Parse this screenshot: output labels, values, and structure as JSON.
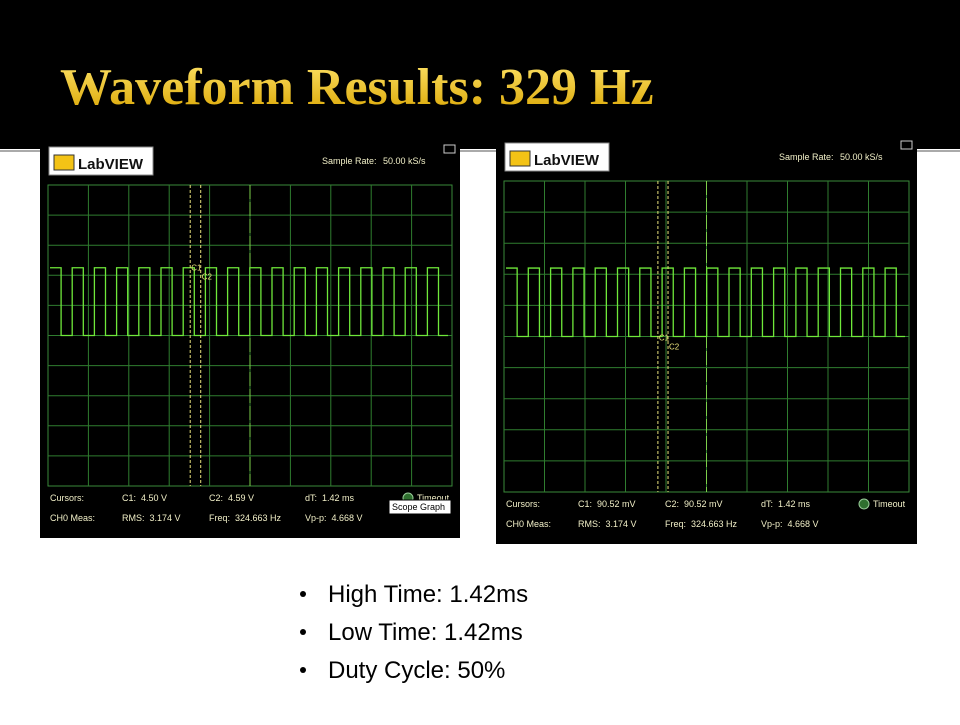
{
  "title": "Waveform Results: 329 Hz",
  "panels": [
    {
      "logo": "LabVIEW",
      "sample_rate_label": "Sample Rate:",
      "sample_rate": "50.00 kS/s",
      "cursors_label": "Cursors:",
      "c1": "C1:  4.50 V",
      "c2": "C2:  4.59 V",
      "dt": "dT:  1.42 ms",
      "timeout": "Timeout",
      "meas_label": "CH0 Meas:",
      "rms": "RMS:  3.174 V",
      "freq": "Freq:  324.663 Hz",
      "vpp": "Vp-p:  4.668 V",
      "cursor_names": [
        "C1",
        "C2"
      ],
      "tooltip": "Scope Graph"
    },
    {
      "logo": "LabVIEW",
      "sample_rate_label": "Sample Rate:",
      "sample_rate": "50.00 kS/s",
      "cursors_label": "Cursors:",
      "c1": "C1:  90.52 mV",
      "c2": "C2:  90.52 mV",
      "dt": "dT:  1.42 ms",
      "timeout": "Timeout",
      "meas_label": "CH0 Meas:",
      "rms": "RMS:  3.174 V",
      "freq": "Freq:  324.663 Hz",
      "vpp": "Vp-p:  4.668 V",
      "cursor_names": [
        "C1",
        "C2"
      ]
    }
  ],
  "bullets": [
    "High Time: 1.42ms",
    "Low Time: 1.42ms",
    "Duty Cycle: 50%"
  ]
}
